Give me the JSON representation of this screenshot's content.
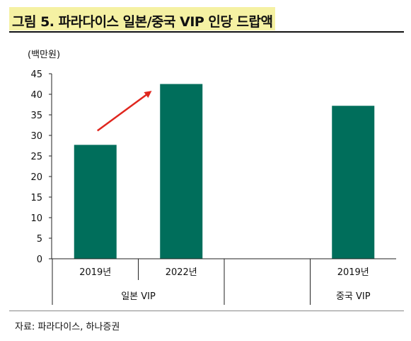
{
  "title": "그림 5. 파라다이스 일본/중국 VIP 인당 드랍액",
  "unit_label": "(백만원)",
  "source": "자료: 파라다이스, 하나증권",
  "chart_data": {
    "type": "bar",
    "categories": [
      "2019년",
      "2022년",
      "",
      "2019년"
    ],
    "groups": [
      "일본 VIP",
      "",
      "중국 VIP"
    ],
    "values": [
      27.7,
      42.5,
      null,
      37.2
    ],
    "ylim": [
      0,
      45
    ],
    "yticks": [
      0,
      5,
      10,
      15,
      20,
      25,
      30,
      35,
      40,
      45
    ],
    "bar_color": "#006e5b",
    "arrow_color": "#e0261e",
    "grid": false
  }
}
